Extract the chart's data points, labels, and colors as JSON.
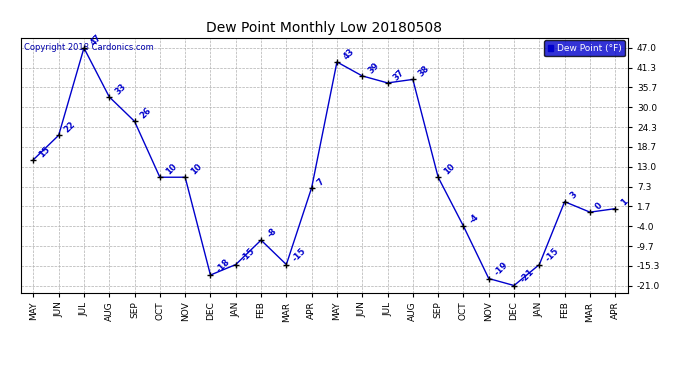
{
  "title": "Dew Point Monthly Low 20180508",
  "copyright": "Copyright 2018 Cardonics.com",
  "legend_label": "Dew Point (°F)",
  "x_labels": [
    "MAY",
    "JUN",
    "JUL",
    "AUG",
    "SEP",
    "OCT",
    "NOV",
    "DEC",
    "JAN",
    "FEB",
    "MAR",
    "APR",
    "MAY",
    "JUN",
    "JUL",
    "AUG",
    "SEP",
    "OCT",
    "NOV",
    "DEC",
    "JAN",
    "FEB",
    "MAR",
    "APR"
  ],
  "y_values": [
    15,
    22,
    47,
    33,
    26,
    10,
    10,
    -18,
    -15,
    -8,
    -15,
    7,
    43,
    39,
    37,
    38,
    10,
    -4,
    -19,
    -21,
    -15,
    3,
    0,
    1
  ],
  "yticks": [
    47.0,
    41.3,
    35.7,
    30.0,
    24.3,
    18.7,
    13.0,
    7.3,
    1.7,
    -4.0,
    -9.7,
    -15.3,
    -21.0
  ],
  "ylim": [
    -23,
    50
  ],
  "line_color": "#0000cc",
  "marker_color": "#000000",
  "bg_color": "#ffffff",
  "grid_color": "#b0b0b0",
  "title_color": "#000000",
  "label_color": "#0000cc",
  "legend_bg": "#0000cc",
  "legend_fg": "#ffffff",
  "copyright_color": "#0000aa",
  "figwidth": 6.9,
  "figheight": 3.75,
  "dpi": 100
}
